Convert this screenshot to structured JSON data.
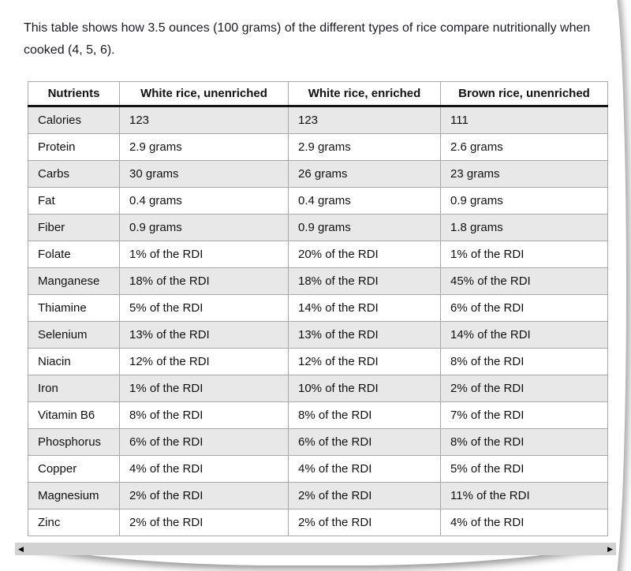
{
  "intro": {
    "text": "This table shows how 3.5 ounces (100 grams) of the different types of rice compare nutritionally when cooked (4, 5, 6)."
  },
  "table": {
    "headers": [
      "Nutrients",
      "White rice, unenriched",
      "White rice, enriched",
      "Brown rice, unenriched"
    ],
    "rows": [
      {
        "cells": [
          "Calories",
          "123",
          "123",
          "111"
        ]
      },
      {
        "cells": [
          "Protein",
          "2.9 grams",
          "2.9 grams",
          "2.6 grams"
        ]
      },
      {
        "cells": [
          "Carbs",
          "30 grams",
          "26 grams",
          "23 grams"
        ]
      },
      {
        "cells": [
          "Fat",
          "0.4 grams",
          "0.4 grams",
          "0.9 grams"
        ]
      },
      {
        "cells": [
          "Fiber",
          "0.9 grams",
          "0.9 grams",
          "1.8 grams"
        ]
      },
      {
        "cells": [
          "Folate",
          "1% of the RDI",
          "20% of the RDI",
          "1% of the RDI"
        ]
      },
      {
        "cells": [
          "Manganese",
          "18% of the RDI",
          "18% of the RDI",
          "45% of the RDI"
        ]
      },
      {
        "cells": [
          "Thiamine",
          "5% of the RDI",
          "14% of the RDI",
          "6% of the RDI"
        ]
      },
      {
        "cells": [
          "Selenium",
          "13% of the RDI",
          "13% of the RDI",
          "14% of the RDI"
        ]
      },
      {
        "cells": [
          "Niacin",
          "12% of the RDI",
          "12% of the RDI",
          "8% of the RDI"
        ]
      },
      {
        "cells": [
          "Iron",
          "1% of the RDI",
          "10% of the RDI",
          "2% of the RDI"
        ]
      },
      {
        "cells": [
          "Vitamin B6",
          "8% of the RDI",
          "8% of the RDI",
          "7% of the RDI"
        ]
      },
      {
        "cells": [
          "Phosphorus",
          "6% of the RDI",
          "6% of the RDI",
          "8% of the RDI"
        ]
      },
      {
        "cells": [
          "Copper",
          "4% of the RDI",
          "4% of the RDI",
          "5% of the RDI"
        ]
      },
      {
        "cells": [
          "Magnesium",
          "2% of the RDI",
          "2% of the RDI",
          "11% of the RDI"
        ]
      },
      {
        "cells": [
          "Zinc",
          "2% of the RDI",
          "2% of the RDI",
          "4% of the RDI"
        ]
      }
    ]
  },
  "scrollbar": {
    "left_arrow_glyph": "◀",
    "right_arrow_glyph": "▶"
  },
  "colors": {
    "row_shade": "#e8e8e8",
    "table_border": "#a8a8a8",
    "header_underline": "#141414",
    "scrollbar_track": "#d2d2d2",
    "text": "#1b1b28"
  }
}
